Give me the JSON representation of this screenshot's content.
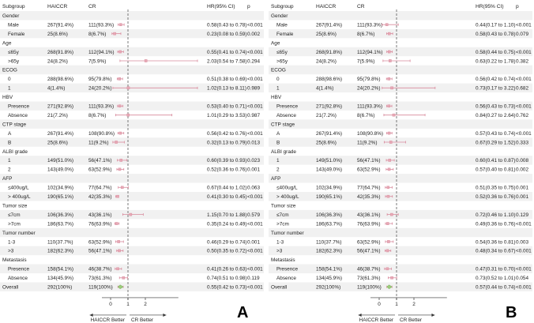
{
  "columns": {
    "subgroup": "Subgroup",
    "haiccr": "HAICCR",
    "cr": "CR",
    "hr": "HR(95% CI)",
    "p": "p"
  },
  "colors": {
    "stripe": "#f1f1f1",
    "box": "#e7a9b6",
    "ci": "#d88a9c",
    "diamond": "#9ccc7a",
    "text": "#222222",
    "axis": "#333333"
  },
  "chart_data": [
    {
      "type": "forest",
      "panel_label": "A",
      "xlabel_left": "HAICCR Better",
      "xlabel_right": "CR Better",
      "x_ticks": [
        0,
        1,
        2
      ],
      "reference_line": 1,
      "rows": [
        {
          "label": "Gender",
          "header": true
        },
        {
          "label": "Male",
          "haiccr": "267(91.4%)",
          "cr": "111(93.3%)",
          "hr": 0.58,
          "lo": 0.43,
          "hi": 0.78,
          "hr_text": "0.58(0.43 to 0.78)",
          "p": "<0.001"
        },
        {
          "label": "Female",
          "haiccr": "25(8.6%)",
          "cr": "8(6.7%)",
          "hr": 0.23,
          "lo": 0.08,
          "hi": 0.59,
          "hr_text": "0.23(0.08 to 0.59)",
          "p": "0.002"
        },
        {
          "label": "Age",
          "header": true
        },
        {
          "label": "≤65y",
          "haiccr": "268(91.8%)",
          "cr": "112(94.1%)",
          "hr": 0.55,
          "lo": 0.41,
          "hi": 0.74,
          "hr_text": "0.55(0.41 to 0.74)",
          "p": "<0.001"
        },
        {
          "label": ">65y",
          "haiccr": "24(8.2%)",
          "cr": "7(5.9%)",
          "hr": 2.03,
          "lo": 0.54,
          "hi": 7.58,
          "hr_text": "2.03(0.54 to 7.58)",
          "p": "0.294"
        },
        {
          "label": "ECOG",
          "header": true
        },
        {
          "label": "0",
          "haiccr": "288(98.6%)",
          "cr": "95(79.8%)",
          "hr": 0.51,
          "lo": 0.38,
          "hi": 0.69,
          "hr_text": "0.51(0.38 to 0.69)",
          "p": "<0.001"
        },
        {
          "label": "1",
          "haiccr": "4(1.4%)",
          "cr": "24(20.2%)",
          "hr": 1.02,
          "lo": 0.13,
          "hi": 8.11,
          "hr_text": "1.02(0.13 to 8.11)",
          "p": "0.989"
        },
        {
          "label": "HBV",
          "header": true
        },
        {
          "label": "Presence",
          "haiccr": "271(92.8%)",
          "cr": "111(93.3%)",
          "hr": 0.53,
          "lo": 0.4,
          "hi": 0.71,
          "hr_text": "0.53(0.40 to 0.71)",
          "p": "<0.001"
        },
        {
          "label": "Absence",
          "haiccr": "21(7.2%)",
          "cr": "8(6.7%)",
          "hr": 1.01,
          "lo": 0.29,
          "hi": 3.53,
          "hr_text": "1.01(0.29 to 3.53)",
          "p": "0.987"
        },
        {
          "label": "CTP stage",
          "header": true
        },
        {
          "label": "A",
          "haiccr": "267(91.4%)",
          "cr": "108(90.8%)",
          "hr": 0.56,
          "lo": 0.42,
          "hi": 0.76,
          "hr_text": "0.56(0.42 to 0.76)",
          "p": "<0.001"
        },
        {
          "label": "B",
          "haiccr": "25(8.6%)",
          "cr": "11(9.2%)",
          "hr": 0.32,
          "lo": 0.13,
          "hi": 0.79,
          "hr_text": "0.32(0.13 to 0.79)",
          "p": "0.013"
        },
        {
          "label": "ALBI grade",
          "header": true
        },
        {
          "label": "1",
          "haiccr": "149(51.0%)",
          "cr": "56(47.1%)",
          "hr": 0.6,
          "lo": 0.39,
          "hi": 0.93,
          "hr_text": "0.60(0.39 to 0.93)",
          "p": "0.023"
        },
        {
          "label": "2",
          "haiccr": "143(49.0%)",
          "cr": "63(52.9%)",
          "hr": 0.52,
          "lo": 0.36,
          "hi": 0.76,
          "hr_text": "0.52(0.36 to 0.76)",
          "p": "0.001"
        },
        {
          "label": "AFP",
          "header": true
        },
        {
          "label": "≤400ug/L",
          "haiccr": "102(34.9%)",
          "cr": "77(64.7%)",
          "hr": 0.67,
          "lo": 0.44,
          "hi": 1.02,
          "hr_text": "0.67(0.44 to 1.02)",
          "p": "0.063"
        },
        {
          "label": "> 400ug/L",
          "haiccr": "190(65.1%)",
          "cr": "42(35.3%)",
          "hr": 0.41,
          "lo": 0.3,
          "hi": 0.45,
          "hr_text": "0.41(0.30 to 0.45)",
          "p": "<0.001"
        },
        {
          "label": "Tumor size",
          "header": true
        },
        {
          "label": "≤7cm",
          "haiccr": "106(36.3%)",
          "cr": "43(36.1%)",
          "hr": 1.15,
          "lo": 0.7,
          "hi": 1.88,
          "hr_text": "1.15(0.70 to 1.88)",
          "p": "0.579"
        },
        {
          "label": ">7cm",
          "haiccr": "186(63.7%)",
          "cr": "76(63.9%)",
          "hr": 0.35,
          "lo": 0.24,
          "hi": 0.49,
          "hr_text": "0.35(0.24 to 0.49)",
          "p": "<0.001"
        },
        {
          "label": "Tumor number",
          "header": true
        },
        {
          "label": "1-3",
          "haiccr": "110(37.7%)",
          "cr": "63(52.9%)",
          "hr": 0.46,
          "lo": 0.29,
          "hi": 0.74,
          "hr_text": "0.46(0.29 to 0.74)",
          "p": "0.001"
        },
        {
          "label": ">3",
          "haiccr": "182(62.3%)",
          "cr": "56(47.1%)",
          "hr": 0.5,
          "lo": 0.35,
          "hi": 0.72,
          "hr_text": "0.50(0.35 to 0.72)",
          "p": "<0.001"
        },
        {
          "label": "Metastasis",
          "header": true
        },
        {
          "label": "Presence",
          "haiccr": "158(54.1%)",
          "cr": "46(38.7%)",
          "hr": 0.41,
          "lo": 0.26,
          "hi": 0.63,
          "hr_text": "0.41(0.26 to 0.63)",
          "p": "<0.001"
        },
        {
          "label": "Absence",
          "haiccr": "134(45.9%)",
          "cr": "73(61.3%)",
          "hr": 0.74,
          "lo": 0.51,
          "hi": 0.98,
          "hr_text": "0.74(0.51 to 0.98)",
          "p": "0.119"
        },
        {
          "label": "Overall",
          "haiccr": "292(100%)",
          "cr": "119(100%)",
          "hr": 0.55,
          "lo": 0.42,
          "hi": 0.73,
          "hr_text": "0.55(0.42 to 0.73)",
          "p": "<0.001",
          "overall": true
        }
      ]
    },
    {
      "type": "forest",
      "panel_label": "B",
      "xlabel_left": "HAICCR Better",
      "xlabel_right": "CR Better",
      "x_ticks": [
        0,
        1,
        2
      ],
      "reference_line": 1,
      "rows": [
        {
          "label": "Gender",
          "header": true
        },
        {
          "label": "Male",
          "haiccr": "267(91.4%)",
          "cr": "111(93.3%)",
          "hr": 0.44,
          "lo": 0.17,
          "hi": 1.1,
          "hr_text": "0.44(0.17 to 1.10)",
          "p": "<0.001"
        },
        {
          "label": "Female",
          "haiccr": "25(8.6%)",
          "cr": "8(6.7%)",
          "hr": 0.58,
          "lo": 0.43,
          "hi": 0.78,
          "hr_text": "0.58(0.43 to 0.78)",
          "p": "0.079"
        },
        {
          "label": "Age",
          "header": true
        },
        {
          "label": "≤65y",
          "haiccr": "268(91.8%)",
          "cr": "112(94.1%)",
          "hr": 0.58,
          "lo": 0.44,
          "hi": 0.75,
          "hr_text": "0.58(0.44 to 0.75)",
          "p": "<0.001"
        },
        {
          "label": ">65y",
          "haiccr": "24(8.2%)",
          "cr": "7(5.9%)",
          "hr": 0.63,
          "lo": 0.22,
          "hi": 1.78,
          "hr_text": "0.63(0.22 to 1.78)",
          "p": "0.382"
        },
        {
          "label": "ECOG",
          "header": true
        },
        {
          "label": "0",
          "haiccr": "288(98.6%)",
          "cr": "95(79.8%)",
          "hr": 0.56,
          "lo": 0.42,
          "hi": 0.74,
          "hr_text": "0.56(0.42 to 0.74)",
          "p": "<0.001"
        },
        {
          "label": "1",
          "haiccr": "4(1.4%)",
          "cr": "24(20.2%)",
          "hr": 0.73,
          "lo": 0.17,
          "hi": 3.22,
          "hr_text": "0.73(0.17 to 3.22)",
          "p": "0.682"
        },
        {
          "label": "HBV",
          "header": true
        },
        {
          "label": "Presence",
          "haiccr": "271(92.8%)",
          "cr": "111(93.3%)",
          "hr": 0.56,
          "lo": 0.43,
          "hi": 0.73,
          "hr_text": "0.56(0.43 to 0.73)",
          "p": "<0.001"
        },
        {
          "label": "Absence",
          "haiccr": "21(7.2%)",
          "cr": "8(6.7%)",
          "hr": 0.84,
          "lo": 0.27,
          "hi": 2.64,
          "hr_text": "0.84(0.27 to 2.64)",
          "p": "0.762"
        },
        {
          "label": "CTP stage",
          "header": true
        },
        {
          "label": "A",
          "haiccr": "267(91.4%)",
          "cr": "108(90.8%)",
          "hr": 0.57,
          "lo": 0.43,
          "hi": 0.74,
          "hr_text": "0.57(0.43 to 0.74)",
          "p": "<0.001"
        },
        {
          "label": "B",
          "haiccr": "25(8.6%)",
          "cr": "11(9.2%)",
          "hr": 0.67,
          "lo": 0.29,
          "hi": 1.52,
          "hr_text": "0.67(0.29 to 1.52)",
          "p": "0.333"
        },
        {
          "label": "ALBI grade",
          "header": true
        },
        {
          "label": "1",
          "haiccr": "149(51.0%)",
          "cr": "56(47.1%)",
          "hr": 0.6,
          "lo": 0.41,
          "hi": 0.87,
          "hr_text": "0.60(0.41 to 0.87)",
          "p": "0.008"
        },
        {
          "label": "2",
          "haiccr": "143(49.0%)",
          "cr": "63(52.9%)",
          "hr": 0.57,
          "lo": 0.4,
          "hi": 0.81,
          "hr_text": "0.57(0.40 to 0.81)",
          "p": "0.002"
        },
        {
          "label": "AFP",
          "header": true
        },
        {
          "label": "≤400ug/L",
          "haiccr": "102(34.9%)",
          "cr": "77(64.7%)",
          "hr": 0.51,
          "lo": 0.35,
          "hi": 0.75,
          "hr_text": "0.51(0.35 to 0.75)",
          "p": "0.001"
        },
        {
          "label": "> 400ug/L",
          "haiccr": "190(65.1%)",
          "cr": "42(35.3%)",
          "hr": 0.52,
          "lo": 0.36,
          "hi": 0.76,
          "hr_text": "0.52(0.36 to 0.76)",
          "p": "0.001"
        },
        {
          "label": "Tumor size",
          "header": true
        },
        {
          "label": "≤7cm",
          "haiccr": "106(36.3%)",
          "cr": "43(36.1%)",
          "hr": 0.72,
          "lo": 0.46,
          "hi": 1.1,
          "hr_text": "0.72(0.46 to 1.10)",
          "p": "0.129"
        },
        {
          "label": ">7cm",
          "haiccr": "186(63.7%)",
          "cr": "76(63.9%)",
          "hr": 0.49,
          "lo": 0.36,
          "hi": 0.76,
          "hr_text": "0.49(0.36 to 0.76)",
          "p": "<0.001"
        },
        {
          "label": "Tumor number",
          "header": true
        },
        {
          "label": "1-3",
          "haiccr": "110(37.7%)",
          "cr": "63(52.9%)",
          "hr": 0.54,
          "lo": 0.36,
          "hi": 0.81,
          "hr_text": "0.54(0.36 to 0.81)",
          "p": "0.003"
        },
        {
          "label": ">3",
          "haiccr": "182(62.3%)",
          "cr": "56(47.1%)",
          "hr": 0.48,
          "lo": 0.34,
          "hi": 0.67,
          "hr_text": "0.48(0.34 to 0.67)",
          "p": "<0.001"
        },
        {
          "label": "Metastasis",
          "header": true
        },
        {
          "label": "Presence",
          "haiccr": "158(54.1%)",
          "cr": "46(38.7%)",
          "hr": 0.47,
          "lo": 0.31,
          "hi": 0.7,
          "hr_text": "0.47(0.31 to 0.70)",
          "p": "<0.001"
        },
        {
          "label": "Absence",
          "haiccr": "134(45.9%)",
          "cr": "73(61.3%)",
          "hr": 0.73,
          "lo": 0.52,
          "hi": 1.01,
          "hr_text": "0.73(0.52 to 1.01)",
          "p": "0.054"
        },
        {
          "label": "Overall",
          "haiccr": "292(100%)",
          "cr": "119(100%)",
          "hr": 0.57,
          "lo": 0.44,
          "hi": 0.74,
          "hr_text": "0.57(0.44 to 0.74)",
          "p": "<0.001",
          "overall": true
        }
      ]
    }
  ]
}
